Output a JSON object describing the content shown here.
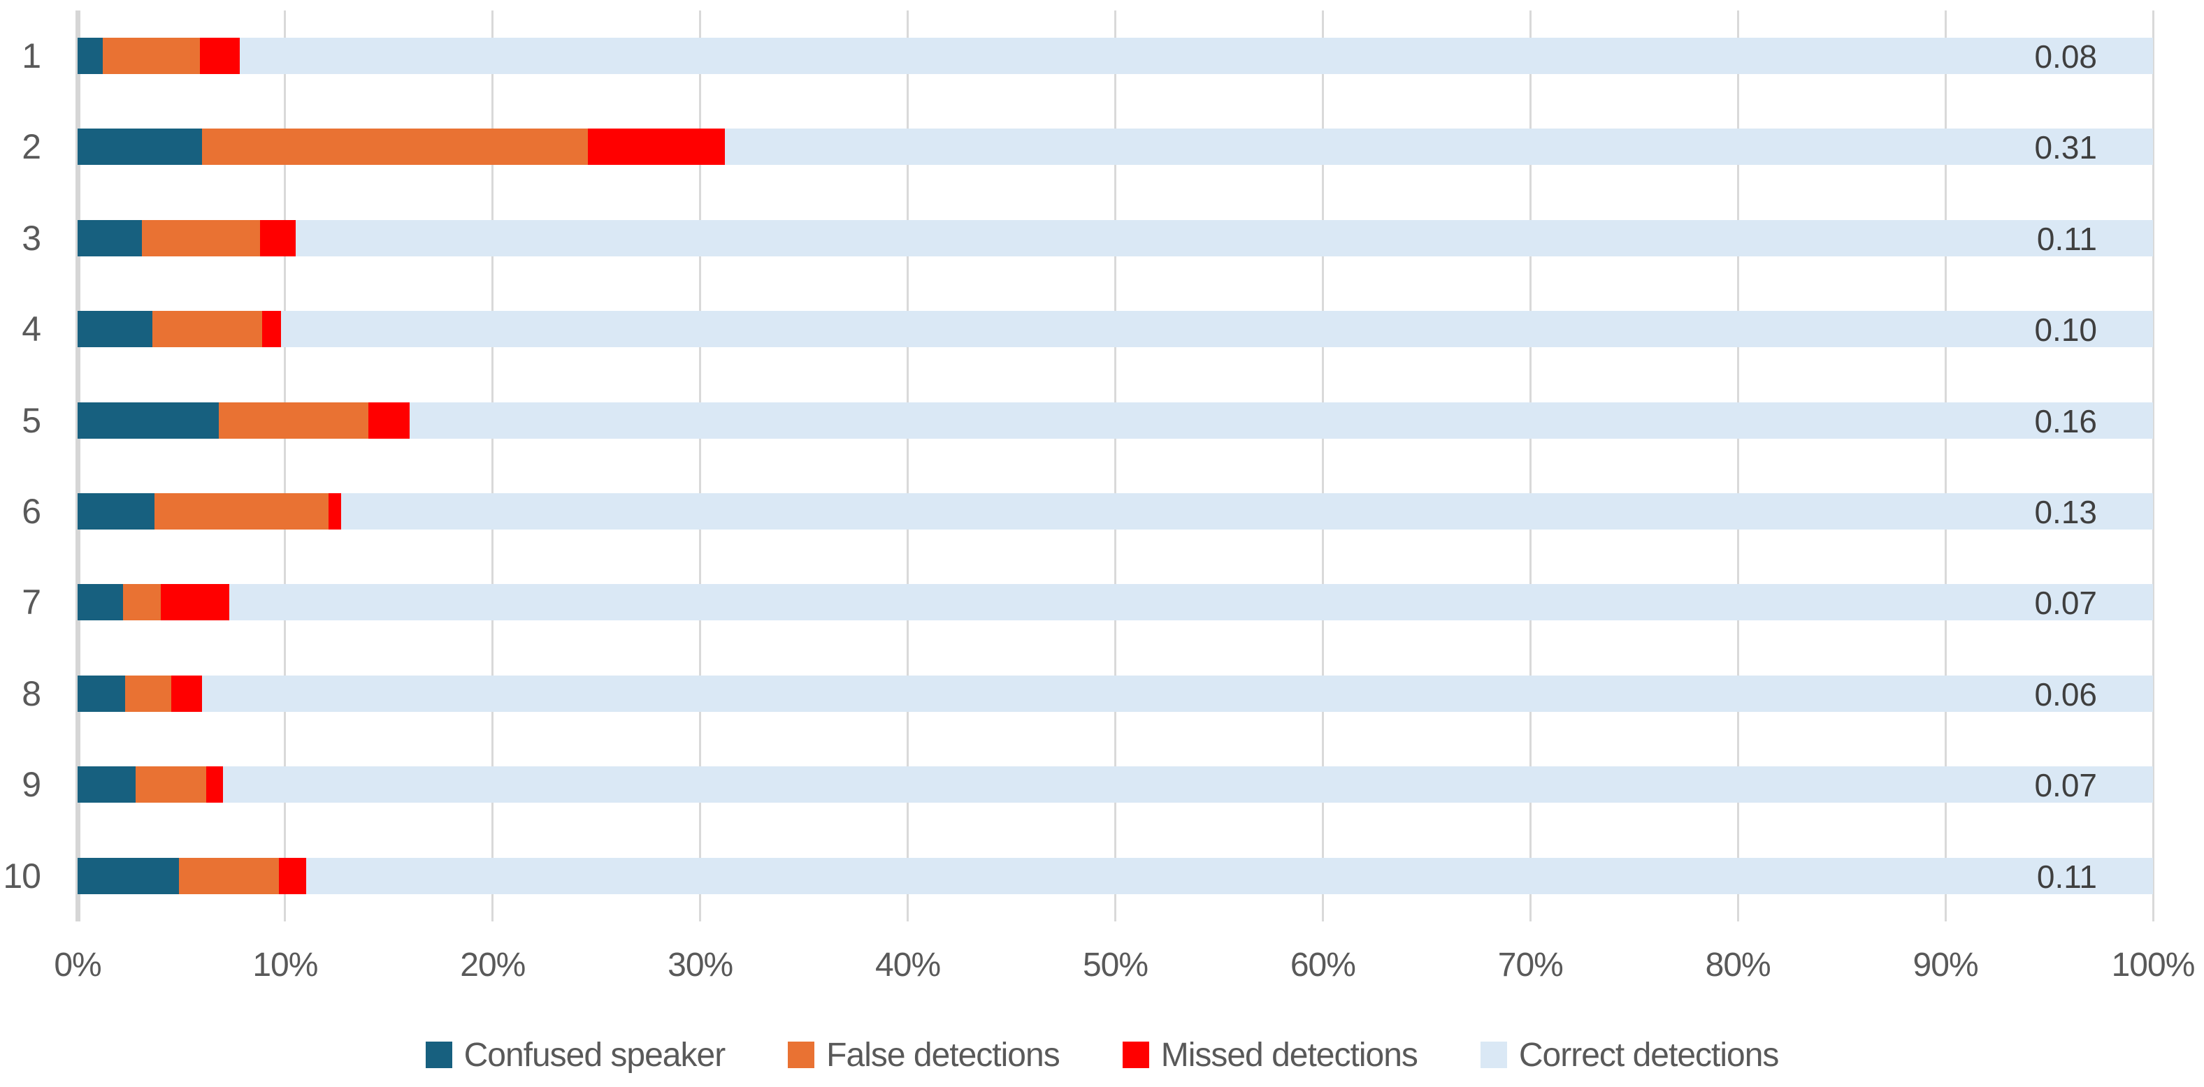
{
  "chart_data": {
    "type": "bar",
    "orientation": "horizontal",
    "stacked": true,
    "title": "",
    "xlabel": "",
    "ylabel": "",
    "xlim": [
      0,
      100
    ],
    "grid": true,
    "legend_position": "bottom",
    "categories": [
      "1",
      "2",
      "3",
      "4",
      "5",
      "6",
      "7",
      "8",
      "9",
      "10"
    ],
    "series": [
      {
        "name": "Confused speaker",
        "color": "#17607F",
        "values": [
          1.2,
          6.0,
          3.1,
          3.6,
          6.8,
          3.7,
          2.2,
          2.3,
          2.8,
          4.9
        ]
      },
      {
        "name": "False detections",
        "color": "#E97233",
        "values": [
          4.7,
          18.6,
          5.7,
          5.3,
          7.2,
          8.4,
          1.8,
          2.2,
          3.4,
          4.8
        ]
      },
      {
        "name": "Missed detections",
        "color": "#FF0000",
        "values": [
          1.9,
          6.6,
          1.7,
          0.9,
          2.0,
          0.6,
          3.3,
          1.5,
          0.8,
          1.3
        ]
      },
      {
        "name": "Correct detections",
        "color": "#DAE8F5",
        "values": [
          92.2,
          68.8,
          89.5,
          90.2,
          84.0,
          87.3,
          92.7,
          94.0,
          93.0,
          89.0
        ]
      }
    ],
    "bar_value_labels": [
      "0.08",
      "0.31",
      "0.11",
      "0.10",
      "0.16",
      "0.13",
      "0.07",
      "0.06",
      "0.07",
      "0.11"
    ],
    "x_ticks": [
      "0%",
      "10%",
      "20%",
      "30%",
      "40%",
      "50%",
      "60%",
      "70%",
      "80%",
      "90%",
      "100%"
    ]
  },
  "colors": {
    "background": "#FFFFFF",
    "gridline": "#D9D9D9",
    "axis_line": "#D6D6D6",
    "tick_text": "#595959",
    "category_text": "#595959",
    "value_text": "#3F3F3F",
    "legend_text": "#595959"
  }
}
